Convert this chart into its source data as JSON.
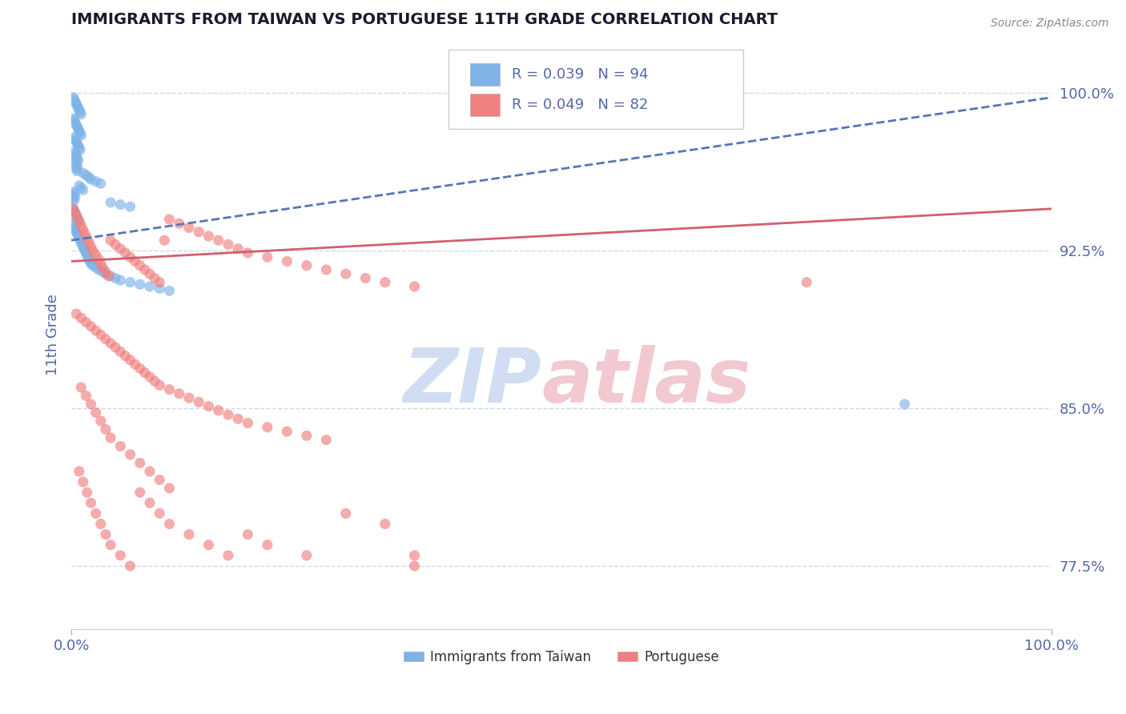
{
  "title": "IMMIGRANTS FROM TAIWAN VS PORTUGUESE 11TH GRADE CORRELATION CHART",
  "source_text": "Source: ZipAtlas.com",
  "ylabel": "11th Grade",
  "xlim": [
    0.0,
    1.0
  ],
  "ylim": [
    0.745,
    1.025
  ],
  "yticks": [
    0.775,
    0.85,
    0.925,
    1.0
  ],
  "ytick_labels": [
    "77.5%",
    "85.0%",
    "92.5%",
    "100.0%"
  ],
  "xtick_labels": [
    "0.0%",
    "100.0%"
  ],
  "R1": 0.039,
  "N1": 94,
  "R2": 0.049,
  "N2": 82,
  "color1": "#7fb3e8",
  "color2": "#f08080",
  "trend1_color": "#5577bb",
  "trend2_color": "#d06070",
  "watermark_color1": "#c8d8f0",
  "watermark_color2": "#f0c0c8",
  "background_color": "#ffffff",
  "grid_color": "#d0d8e8",
  "title_color": "#1a1a2e",
  "tick_color": "#5566aa",
  "legend_label1": "Immigrants from Taiwan",
  "legend_label2": "Portuguese",
  "taiwan_x": [
    0.002,
    0.003,
    0.004,
    0.005,
    0.006,
    0.007,
    0.008,
    0.009,
    0.01,
    0.002,
    0.003,
    0.004,
    0.005,
    0.006,
    0.007,
    0.008,
    0.009,
    0.01,
    0.003,
    0.004,
    0.005,
    0.006,
    0.007,
    0.008,
    0.009,
    0.003,
    0.004,
    0.005,
    0.006,
    0.007,
    0.004,
    0.005,
    0.006,
    0.005,
    0.006,
    0.012,
    0.015,
    0.018,
    0.02,
    0.025,
    0.03,
    0.008,
    0.01,
    0.012,
    0.002,
    0.003,
    0.004,
    0.002,
    0.003,
    0.04,
    0.05,
    0.06,
    0.002,
    0.003,
    0.004,
    0.005,
    0.006,
    0.007,
    0.008,
    0.001,
    0.002,
    0.003,
    0.004,
    0.005,
    0.006,
    0.007,
    0.008,
    0.009,
    0.01,
    0.011,
    0.012,
    0.013,
    0.014,
    0.015,
    0.016,
    0.017,
    0.018,
    0.019,
    0.02,
    0.022,
    0.025,
    0.028,
    0.032,
    0.035,
    0.04,
    0.045,
    0.05,
    0.06,
    0.07,
    0.08,
    0.09,
    0.1,
    0.85
  ],
  "taiwan_y": [
    0.998,
    0.997,
    0.996,
    0.995,
    0.994,
    0.993,
    0.992,
    0.991,
    0.99,
    0.988,
    0.987,
    0.986,
    0.985,
    0.984,
    0.983,
    0.982,
    0.981,
    0.98,
    0.979,
    0.978,
    0.977,
    0.976,
    0.975,
    0.974,
    0.973,
    0.972,
    0.971,
    0.97,
    0.969,
    0.968,
    0.967,
    0.966,
    0.965,
    0.964,
    0.963,
    0.962,
    0.961,
    0.96,
    0.959,
    0.958,
    0.957,
    0.956,
    0.955,
    0.954,
    0.953,
    0.952,
    0.951,
    0.95,
    0.949,
    0.948,
    0.947,
    0.946,
    0.945,
    0.944,
    0.943,
    0.942,
    0.941,
    0.94,
    0.939,
    0.938,
    0.937,
    0.936,
    0.935,
    0.934,
    0.933,
    0.932,
    0.931,
    0.93,
    0.929,
    0.928,
    0.927,
    0.926,
    0.925,
    0.924,
    0.923,
    0.922,
    0.921,
    0.92,
    0.919,
    0.918,
    0.917,
    0.916,
    0.915,
    0.914,
    0.913,
    0.912,
    0.911,
    0.91,
    0.909,
    0.908,
    0.907,
    0.906,
    0.852
  ],
  "portuguese_x": [
    0.002,
    0.004,
    0.006,
    0.008,
    0.01,
    0.012,
    0.014,
    0.016,
    0.018,
    0.02,
    0.022,
    0.025,
    0.028,
    0.03,
    0.032,
    0.035,
    0.038,
    0.04,
    0.045,
    0.05,
    0.055,
    0.06,
    0.065,
    0.07,
    0.075,
    0.08,
    0.085,
    0.09,
    0.095,
    0.1,
    0.11,
    0.12,
    0.13,
    0.14,
    0.15,
    0.16,
    0.17,
    0.18,
    0.2,
    0.22,
    0.24,
    0.26,
    0.28,
    0.3,
    0.32,
    0.35,
    0.005,
    0.01,
    0.015,
    0.02,
    0.025,
    0.03,
    0.035,
    0.04,
    0.045,
    0.05,
    0.055,
    0.06,
    0.065,
    0.07,
    0.075,
    0.08,
    0.085,
    0.09,
    0.1,
    0.11,
    0.12,
    0.13,
    0.14,
    0.15,
    0.16,
    0.17,
    0.18,
    0.2,
    0.22,
    0.24,
    0.26,
    0.75
  ],
  "portuguese_y": [
    0.945,
    0.943,
    0.941,
    0.939,
    0.937,
    0.935,
    0.933,
    0.931,
    0.929,
    0.927,
    0.925,
    0.923,
    0.921,
    0.919,
    0.917,
    0.915,
    0.913,
    0.93,
    0.928,
    0.926,
    0.924,
    0.922,
    0.92,
    0.918,
    0.916,
    0.914,
    0.912,
    0.91,
    0.93,
    0.94,
    0.938,
    0.936,
    0.934,
    0.932,
    0.93,
    0.928,
    0.926,
    0.924,
    0.922,
    0.92,
    0.918,
    0.916,
    0.914,
    0.912,
    0.91,
    0.908,
    0.895,
    0.893,
    0.891,
    0.889,
    0.887,
    0.885,
    0.883,
    0.881,
    0.879,
    0.877,
    0.875,
    0.873,
    0.871,
    0.869,
    0.867,
    0.865,
    0.863,
    0.861,
    0.859,
    0.857,
    0.855,
    0.853,
    0.851,
    0.849,
    0.847,
    0.845,
    0.843,
    0.841,
    0.839,
    0.837,
    0.835,
    0.91
  ],
  "portuguese_x2": [
    0.008,
    0.012,
    0.016,
    0.02,
    0.025,
    0.03,
    0.035,
    0.04,
    0.05,
    0.06,
    0.07,
    0.08,
    0.09,
    0.1,
    0.12,
    0.14,
    0.16,
    0.18,
    0.2,
    0.24,
    0.28,
    0.32,
    0.35
  ],
  "portuguese_y2": [
    0.82,
    0.815,
    0.81,
    0.805,
    0.8,
    0.795,
    0.79,
    0.785,
    0.78,
    0.775,
    0.81,
    0.805,
    0.8,
    0.795,
    0.79,
    0.785,
    0.78,
    0.79,
    0.785,
    0.78,
    0.8,
    0.795,
    0.78
  ],
  "portuguese_x3": [
    0.01,
    0.015,
    0.02,
    0.025,
    0.03,
    0.035,
    0.04,
    0.05,
    0.06,
    0.07,
    0.08,
    0.09,
    0.1,
    0.35
  ],
  "portuguese_y3": [
    0.86,
    0.856,
    0.852,
    0.848,
    0.844,
    0.84,
    0.836,
    0.832,
    0.828,
    0.824,
    0.82,
    0.816,
    0.812,
    0.775
  ]
}
